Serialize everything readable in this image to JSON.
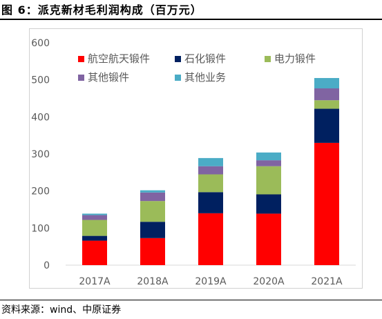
{
  "figure": {
    "title": "图 6：派克新材毛利润构成（百万元）",
    "source": "资料来源：wind、中原证券"
  },
  "chart_data": {
    "type": "bar",
    "stacked": true,
    "title": "",
    "xlabel": "",
    "ylabel": "",
    "categories": [
      "2017A",
      "2018A",
      "2019A",
      "2020A",
      "2021A"
    ],
    "ylim": [
      0,
      600
    ],
    "yticks": [
      0,
      100,
      200,
      300,
      400,
      500,
      600
    ],
    "grid": false,
    "legend_position": "top-left",
    "series": [
      {
        "name": "航空航天锻件",
        "color": "#ff0000",
        "values": [
          66,
          73,
          140,
          139,
          330
        ]
      },
      {
        "name": "石化锻件",
        "color": "#002060",
        "values": [
          13,
          44,
          57,
          52,
          92
        ]
      },
      {
        "name": "电力锻件",
        "color": "#9bbb59",
        "values": [
          43,
          56,
          48,
          76,
          23
        ]
      },
      {
        "name": "其他锻件",
        "color": "#8064a2",
        "values": [
          13,
          23,
          22,
          16,
          32
        ]
      },
      {
        "name": "其他业务",
        "color": "#4bacc6",
        "values": [
          4,
          6,
          22,
          21,
          28
        ]
      }
    ]
  }
}
